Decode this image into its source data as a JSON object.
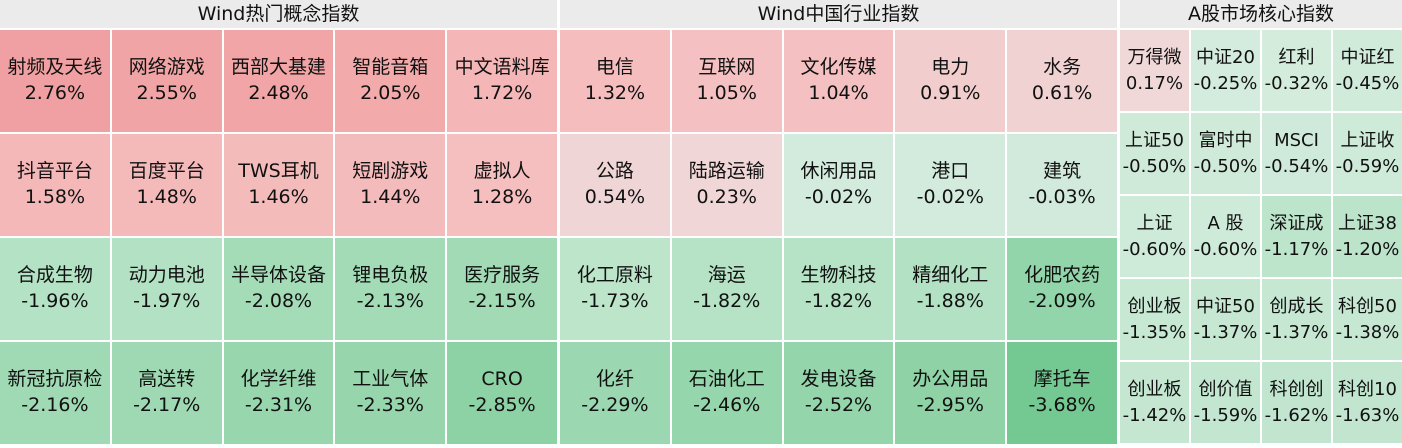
{
  "panels": [
    {
      "title": "Wind热门概念指数",
      "cells": [
        {
          "name": "射频及天线",
          "value": "2.76%",
          "color": "#f0a0a2"
        },
        {
          "name": "网络游戏",
          "value": "2.55%",
          "color": "#f1a4a5"
        },
        {
          "name": "西部大基建",
          "value": "2.48%",
          "color": "#f1a5a6"
        },
        {
          "name": "智能音箱",
          "value": "2.05%",
          "color": "#f2aaab"
        },
        {
          "name": "中文语料库",
          "value": "1.72%",
          "color": "#f4b6b7"
        },
        {
          "name": "抖音平台",
          "value": "1.58%",
          "color": "#f4b8b9"
        },
        {
          "name": "百度平台",
          "value": "1.48%",
          "color": "#f4baba"
        },
        {
          "name": "TWS耳机",
          "value": "1.46%",
          "color": "#f4bbbb"
        },
        {
          "name": "短剧游戏",
          "value": "1.44%",
          "color": "#f4bbbc"
        },
        {
          "name": "虚拟人",
          "value": "1.28%",
          "color": "#f5bebf"
        },
        {
          "name": "合成生物",
          "value": "-1.96%",
          "color": "#b4e2c4"
        },
        {
          "name": "动力电池",
          "value": "-1.97%",
          "color": "#b3e1c3"
        },
        {
          "name": "半导体设备",
          "value": "-2.08%",
          "color": "#a5dcb8"
        },
        {
          "name": "锂电负极",
          "value": "-2.13%",
          "color": "#a2dbb6"
        },
        {
          "name": "医疗服务",
          "value": "-2.15%",
          "color": "#a1dab5"
        },
        {
          "name": "新冠抗原检",
          "value": "-2.16%",
          "color": "#a0dab4"
        },
        {
          "name": "高送转",
          "value": "-2.17%",
          "color": "#9fd9b3"
        },
        {
          "name": "化学纤维",
          "value": "-2.31%",
          "color": "#98d7ae"
        },
        {
          "name": "工业气体",
          "value": "-2.33%",
          "color": "#97d6ad"
        },
        {
          "name": "CRO",
          "value": "-2.85%",
          "color": "#8dd2a5"
        }
      ]
    },
    {
      "title": "Wind中国行业指数",
      "cells": [
        {
          "name": "电信",
          "value": "1.32%",
          "color": "#f5bdbe"
        },
        {
          "name": "互联网",
          "value": "1.05%",
          "color": "#f5c0c1"
        },
        {
          "name": "文化传媒",
          "value": "1.04%",
          "color": "#f5c0c1"
        },
        {
          "name": "电力",
          "value": "0.91%",
          "color": "#f2cdce"
        },
        {
          "name": "水务",
          "value": "0.61%",
          "color": "#f1d2d3"
        },
        {
          "name": "公路",
          "value": "0.54%",
          "color": "#f0d5d6"
        },
        {
          "name": "陆路运输",
          "value": "0.23%",
          "color": "#f0d6d6"
        },
        {
          "name": "休闲用品",
          "value": "-0.02%",
          "color": "#d2ebdc"
        },
        {
          "name": "港口",
          "value": "-0.02%",
          "color": "#d2ebdc"
        },
        {
          "name": "建筑",
          "value": "-0.03%",
          "color": "#d1eadb"
        },
        {
          "name": "化工原料",
          "value": "-1.73%",
          "color": "#bce5ca"
        },
        {
          "name": "海运",
          "value": "-1.82%",
          "color": "#b6e2c5"
        },
        {
          "name": "生物科技",
          "value": "-1.82%",
          "color": "#b6e2c5"
        },
        {
          "name": "精细化工",
          "value": "-1.88%",
          "color": "#b3e1c3"
        },
        {
          "name": "化肥农药",
          "value": "-2.09%",
          "color": "#93d5ab"
        },
        {
          "name": "化纤",
          "value": "-2.29%",
          "color": "#9bd8b1"
        },
        {
          "name": "石油化工",
          "value": "-2.46%",
          "color": "#96d6ac"
        },
        {
          "name": "发电设备",
          "value": "-2.52%",
          "color": "#94d5ab"
        },
        {
          "name": "办公用品",
          "value": "-2.95%",
          "color": "#8ed2a6"
        },
        {
          "name": "摩托车",
          "value": "-3.68%",
          "color": "#74c892"
        }
      ]
    },
    {
      "title": "A股市场核心指数",
      "cells": [
        {
          "name": "万得微",
          "value": "0.17%",
          "color": "#f0d8d8"
        },
        {
          "name": "中证20",
          "value": "-0.25%",
          "color": "#d4ecdd"
        },
        {
          "name": "红利",
          "value": "-0.32%",
          "color": "#d3ecdc"
        },
        {
          "name": "中证红",
          "value": "-0.45%",
          "color": "#d1ebdb"
        },
        {
          "name": "上证50",
          "value": "-0.50%",
          "color": "#d0eada"
        },
        {
          "name": "富时中",
          "value": "-0.50%",
          "color": "#d0eada"
        },
        {
          "name": "MSCI",
          "value": "-0.54%",
          "color": "#cfeada"
        },
        {
          "name": "上证收",
          "value": "-0.59%",
          "color": "#ceead9"
        },
        {
          "name": "上证",
          "value": "-0.60%",
          "color": "#ceead9"
        },
        {
          "name": "A 股",
          "value": "-0.60%",
          "color": "#ceead9"
        },
        {
          "name": "深证成",
          "value": "-1.17%",
          "color": "#bde5cb"
        },
        {
          "name": "上证38",
          "value": "-1.20%",
          "color": "#bce4ca"
        },
        {
          "name": "创业板",
          "value": "-1.35%",
          "color": "#c7e8d3"
        },
        {
          "name": "中证50",
          "value": "-1.37%",
          "color": "#c6e7d2"
        },
        {
          "name": "创成长",
          "value": "-1.37%",
          "color": "#c6e7d2"
        },
        {
          "name": "科创50",
          "value": "-1.38%",
          "color": "#c6e7d2"
        },
        {
          "name": "创业板",
          "value": "-1.42%",
          "color": "#c5e7d1"
        },
        {
          "name": "创价值",
          "value": "-1.59%",
          "color": "#c2e6cf"
        },
        {
          "name": "科创创",
          "value": "-1.62%",
          "color": "#c1e5ce"
        },
        {
          "name": "科创10",
          "value": "-1.63%",
          "color": "#c1e5ce"
        }
      ]
    }
  ]
}
